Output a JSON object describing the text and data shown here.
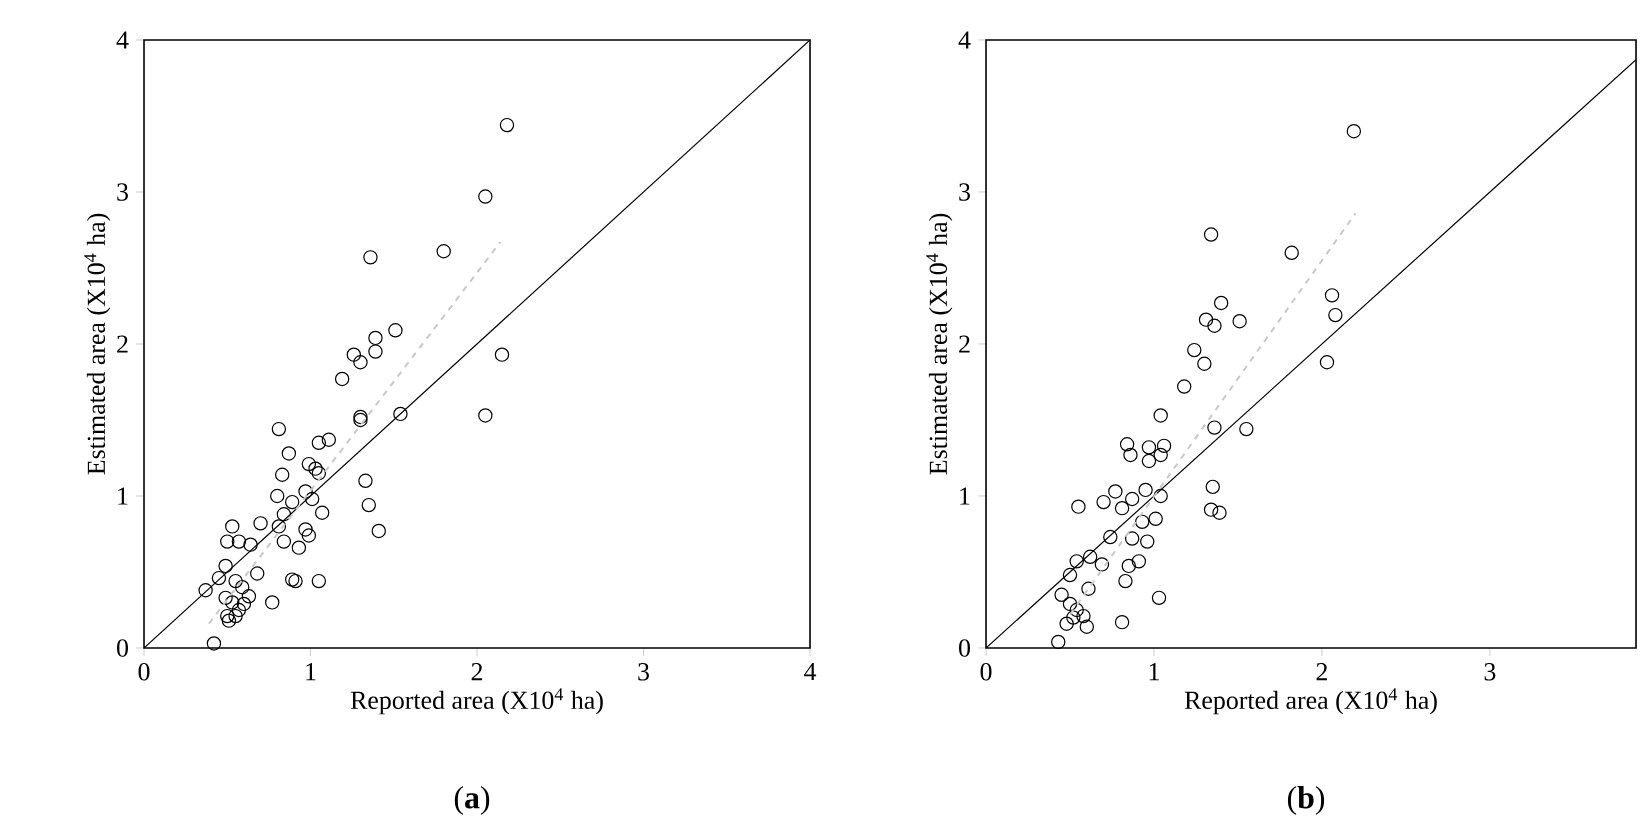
{
  "chart_data": [
    {
      "type": "scatter",
      "xlabel": "Reported area (X10$^{4}$ ha)",
      "ylabel": "Estimated area (X10$^{4}$ ha)",
      "annotations": [
        "(**a**)"
      ],
      "xlim": [
        0,
        4
      ],
      "ylim": [
        0,
        4
      ],
      "xticks": [
        0,
        1,
        2,
        3,
        4
      ],
      "yticks": [
        0,
        1,
        2,
        3,
        4
      ],
      "marker": "circle",
      "series": [
        {
          "color": "#000000",
          "x": [
            2.18,
            2.05,
            1.36,
            1.8,
            1.51,
            1.39,
            1.39,
            1.26,
            1.3,
            1.19,
            2.15,
            2.05,
            1.54,
            1.3,
            1.3,
            0.81,
            1.11,
            1.05,
            0.87,
            0.99,
            1.03,
            0.83,
            1.05,
            1.33,
            0.8,
            0.97,
            1.01,
            0.89,
            1.35,
            1.07,
            0.84,
            0.81,
            0.97,
            0.99,
            1.41,
            0.7,
            0.84,
            0.93,
            0.53,
            0.5,
            0.57,
            0.64,
            0.68,
            0.89,
            0.91,
            1.05,
            0.49,
            0.45,
            0.37,
            0.55,
            0.59,
            0.49,
            0.63,
            0.53,
            0.6,
            0.57,
            0.5,
            0.55,
            0.51,
            0.77,
            0.42
          ],
          "values": [
            3.44,
            2.97,
            2.57,
            2.61,
            2.09,
            2.04,
            1.95,
            1.93,
            1.88,
            1.77,
            1.93,
            1.53,
            1.54,
            1.52,
            1.5,
            1.44,
            1.37,
            1.35,
            1.28,
            1.21,
            1.18,
            1.14,
            1.15,
            1.1,
            1.0,
            1.03,
            0.98,
            0.96,
            0.94,
            0.89,
            0.88,
            0.8,
            0.78,
            0.74,
            0.77,
            0.82,
            0.7,
            0.66,
            0.8,
            0.7,
            0.7,
            0.68,
            0.49,
            0.45,
            0.44,
            0.44,
            0.54,
            0.46,
            0.38,
            0.44,
            0.4,
            0.33,
            0.34,
            0.3,
            0.29,
            0.25,
            0.21,
            0.21,
            0.18,
            0.3,
            0.03
          ]
        },
        {
          "type": "line",
          "color": "#000000",
          "marker": "none",
          "line_style": "solid",
          "x": [
            0,
            4
          ],
          "values": [
            0,
            4
          ]
        },
        {
          "type": "line",
          "color": "#c8c8c8",
          "marker": "none",
          "line_style": "dashed",
          "x": [
            0.39,
            2.14
          ],
          "values": [
            0.16,
            2.67
          ]
        }
      ]
    },
    {
      "type": "scatter",
      "xlabel": "Reported area (X10$^{4}$ ha)",
      "ylabel": "Estimated area (X10$^{4}$ ha)",
      "annotations": [
        "(**b**)"
      ],
      "xlim": [
        0,
        3.87
      ],
      "ylim": [
        0,
        4
      ],
      "xticks": [
        0,
        1,
        2,
        3
      ],
      "yticks": [
        0,
        1,
        2,
        3,
        4
      ],
      "marker": "circle",
      "series": [
        {
          "color": "#000000",
          "x": [
            2.19,
            1.34,
            1.82,
            2.06,
            2.08,
            2.03,
            1.4,
            1.31,
            1.36,
            1.51,
            1.24,
            1.3,
            1.18,
            1.04,
            1.36,
            1.55,
            0.84,
            0.86,
            0.97,
            0.97,
            1.06,
            1.04,
            0.77,
            0.95,
            1.04,
            0.87,
            0.81,
            0.7,
            0.55,
            1.35,
            1.34,
            1.39,
            0.93,
            1.01,
            0.87,
            0.96,
            0.74,
            0.91,
            0.85,
            0.83,
            1.03,
            0.81,
            0.62,
            0.69,
            0.54,
            0.5,
            0.61,
            0.45,
            0.5,
            0.54,
            0.52,
            0.58,
            0.48,
            0.6,
            0.43
          ],
          "values": [
            3.4,
            2.72,
            2.6,
            2.32,
            2.19,
            1.88,
            2.27,
            2.16,
            2.12,
            2.15,
            1.96,
            1.87,
            1.72,
            1.53,
            1.45,
            1.44,
            1.34,
            1.27,
            1.32,
            1.23,
            1.33,
            1.27,
            1.03,
            1.04,
            1.0,
            0.98,
            0.92,
            0.96,
            0.93,
            1.06,
            0.91,
            0.89,
            0.83,
            0.85,
            0.72,
            0.7,
            0.73,
            0.57,
            0.54,
            0.44,
            0.33,
            0.17,
            0.6,
            0.55,
            0.57,
            0.48,
            0.39,
            0.35,
            0.29,
            0.25,
            0.2,
            0.21,
            0.16,
            0.14,
            0.04
          ]
        },
        {
          "type": "line",
          "color": "#000000",
          "marker": "none",
          "line_style": "solid",
          "x": [
            0,
            3.87
          ],
          "values": [
            0,
            3.87
          ]
        },
        {
          "type": "line",
          "color": "#c8c8c8",
          "marker": "none",
          "line_style": "dashed",
          "x": [
            0.5,
            2.2
          ],
          "values": [
            0.22,
            2.86
          ]
        }
      ]
    }
  ]
}
